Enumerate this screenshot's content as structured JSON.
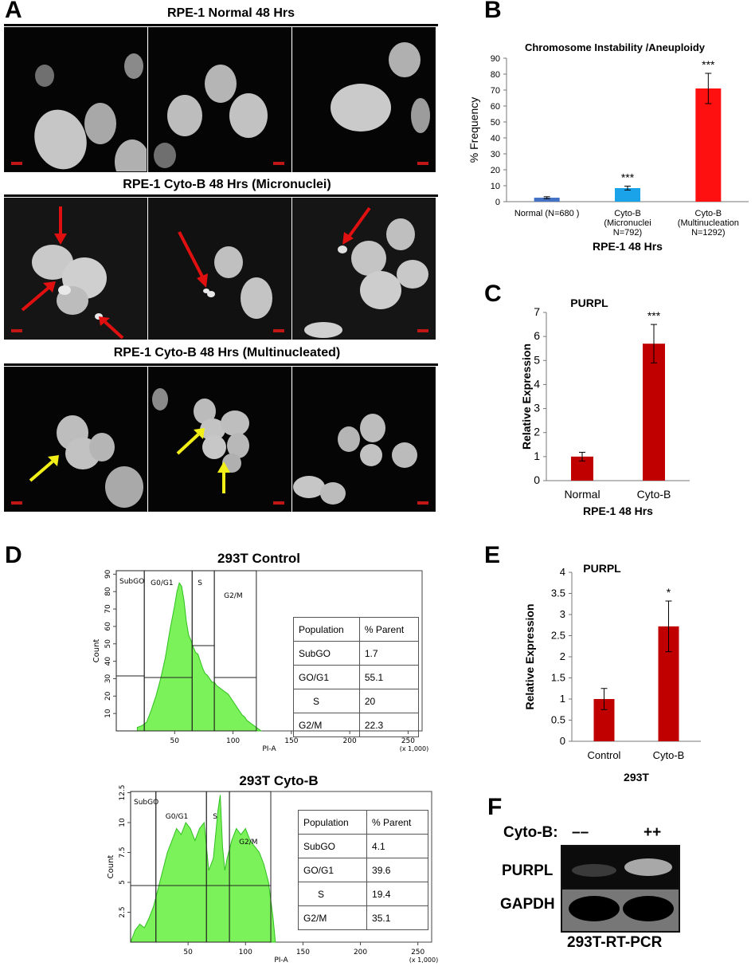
{
  "panels": {
    "a": "A",
    "b": "B",
    "c": "C",
    "d": "D",
    "e": "E",
    "f": "F"
  },
  "panel_a": {
    "rows": [
      {
        "title": "RPE-1 Normal 48 Hrs"
      },
      {
        "title": "RPE-1 Cyto-B 48 Hrs (Micronuclei)"
      },
      {
        "title": "RPE-1 Cyto-B 48 Hrs (Multinucleated)"
      }
    ],
    "arrow_colors": {
      "micronuclei": "#e01010",
      "multinucleated": "#f2ef18"
    }
  },
  "chart_data": [
    {
      "id": "B",
      "type": "bar",
      "title": "Chromosome Instability /Aneuploidy",
      "ylabel": "% Frequency",
      "xlabel": "RPE-1 48 Hrs",
      "ylim": [
        0,
        90
      ],
      "yticks": [
        "0",
        "10",
        "20",
        "30",
        "40",
        "50",
        "60",
        "70",
        "80",
        "90"
      ],
      "categories": [
        [
          "Normal (N=680 )"
        ],
        [
          "Cyto-B",
          "(Micronuclei",
          "N=792)"
        ],
        [
          "Cyto-B",
          "(Multinucleation",
          "N=1292)"
        ]
      ],
      "values": [
        2.5,
        8.5,
        71
      ],
      "errors": [
        0.6,
        1.2,
        9.5
      ],
      "significance": [
        "",
        "***",
        "***"
      ],
      "colors": [
        "#4472c4",
        "#1aa3e8",
        "#ff1010"
      ]
    },
    {
      "id": "C",
      "type": "bar",
      "title": "PURPL",
      "ylabel": "Relative Expression",
      "xlabel": "RPE-1 48 Hrs",
      "ylim": [
        0,
        7
      ],
      "yticks": [
        "0",
        "1",
        "2",
        "3",
        "4",
        "5",
        "6",
        "7"
      ],
      "categories": [
        [
          "Normal"
        ],
        [
          "Cyto-B"
        ]
      ],
      "values": [
        1.0,
        5.7
      ],
      "errors": [
        0.18,
        0.8
      ],
      "significance": [
        "",
        "***"
      ],
      "colors": [
        "#c00000",
        "#c00000"
      ]
    },
    {
      "id": "D1",
      "type": "area",
      "title": "293T Control",
      "xlabel": "PI-A",
      "ylabel": "Count",
      "x_unit": "(x 1,000)",
      "xticks": [
        "50",
        "100",
        "150",
        "200",
        "250"
      ],
      "yticks": [
        "10",
        "20",
        "30",
        "40",
        "50",
        "60",
        "70",
        "80",
        "90"
      ],
      "xlim": [
        0,
        262
      ],
      "ylim": [
        0,
        92
      ],
      "gates": [
        "SubGO",
        "G0/G1",
        "S",
        "G2/M"
      ],
      "x": [
        18,
        22,
        26,
        30,
        34,
        38,
        42,
        46,
        50,
        52,
        54,
        56,
        58,
        60,
        62,
        64,
        66,
        68,
        70,
        72,
        74,
        76,
        78,
        80,
        82,
        84,
        86,
        88,
        90,
        92,
        94,
        96,
        98,
        100,
        102,
        104,
        106,
        108,
        110,
        112,
        114,
        116,
        118,
        120,
        122,
        124
      ],
      "y": [
        2,
        3,
        5,
        12,
        20,
        30,
        42,
        58,
        72,
        80,
        85,
        83,
        75,
        63,
        55,
        52,
        48,
        45,
        44,
        40,
        36,
        33,
        32,
        30,
        28,
        28,
        26,
        25,
        24,
        23,
        22,
        21,
        19,
        17,
        15,
        13,
        11,
        9,
        8,
        6,
        5,
        4,
        3,
        2,
        1,
        0
      ],
      "table": {
        "headers": [
          "Population",
          "% Parent"
        ],
        "rows": [
          [
            "SubGO",
            "1.7"
          ],
          [
            "GO/G1",
            "55.1"
          ],
          [
            "S",
            "20"
          ],
          [
            "G2/M",
            "22.3"
          ]
        ]
      }
    },
    {
      "id": "D2",
      "type": "area",
      "title": "293T Cyto-B",
      "xlabel": "PI-A",
      "ylabel": "Count",
      "x_unit": "(x 1,000)",
      "xticks": [
        "50",
        "100",
        "150",
        "200",
        "250"
      ],
      "yticks": [
        "2.5",
        "5",
        "7.5",
        "10",
        "12.5"
      ],
      "xlim": [
        0,
        262
      ],
      "ylim": [
        0,
        12.6
      ],
      "gates": [
        "SubGO",
        "G0/G1",
        "S",
        "G2/M"
      ],
      "x": [
        0,
        4,
        8,
        12,
        16,
        20,
        24,
        28,
        32,
        36,
        40,
        44,
        48,
        52,
        56,
        60,
        64,
        68,
        72,
        74,
        76,
        78,
        80,
        82,
        84,
        88,
        92,
        96,
        100,
        104,
        108,
        112,
        116,
        120,
        124,
        126
      ],
      "y": [
        0,
        1,
        1.5,
        1.2,
        2,
        3,
        4.5,
        6,
        7.5,
        8.5,
        9.5,
        9,
        10,
        9.5,
        8.5,
        9.5,
        10,
        6,
        7,
        9,
        11,
        12.3,
        8,
        6,
        7,
        8.5,
        9.5,
        9,
        9.5,
        8.5,
        8,
        7.5,
        6.5,
        5,
        2,
        0
      ],
      "table": {
        "headers": [
          "Population",
          "% Parent"
        ],
        "rows": [
          [
            "SubGO",
            "4.1"
          ],
          [
            "GO/G1",
            "39.6"
          ],
          [
            "S",
            "19.4"
          ],
          [
            "G2/M",
            "35.1"
          ]
        ]
      }
    },
    {
      "id": "E",
      "type": "bar",
      "title": "PURPL",
      "ylabel": "Relative Expression",
      "xlabel": "293T",
      "ylim": [
        0,
        4
      ],
      "yticks": [
        "0",
        "0.5",
        "1",
        "1.5",
        "2",
        "2.5",
        "3",
        "3.5",
        "4"
      ],
      "categories": [
        [
          "Control"
        ],
        [
          "Cyto-B"
        ]
      ],
      "values": [
        1.0,
        2.72
      ],
      "errors": [
        0.25,
        0.6
      ],
      "significance": [
        "",
        "*"
      ],
      "colors": [
        "#c00000",
        "#c00000"
      ]
    }
  ],
  "panel_f": {
    "treatment_label": "Cyto-B:",
    "lanes": [
      "––",
      "++"
    ],
    "rows": [
      {
        "label": "PURPL",
        "band_intensity": [
          0.35,
          1.0
        ]
      },
      {
        "label": "GAPDH",
        "band_intensity": [
          1.0,
          1.0
        ]
      }
    ],
    "caption": "293T-RT-PCR"
  }
}
